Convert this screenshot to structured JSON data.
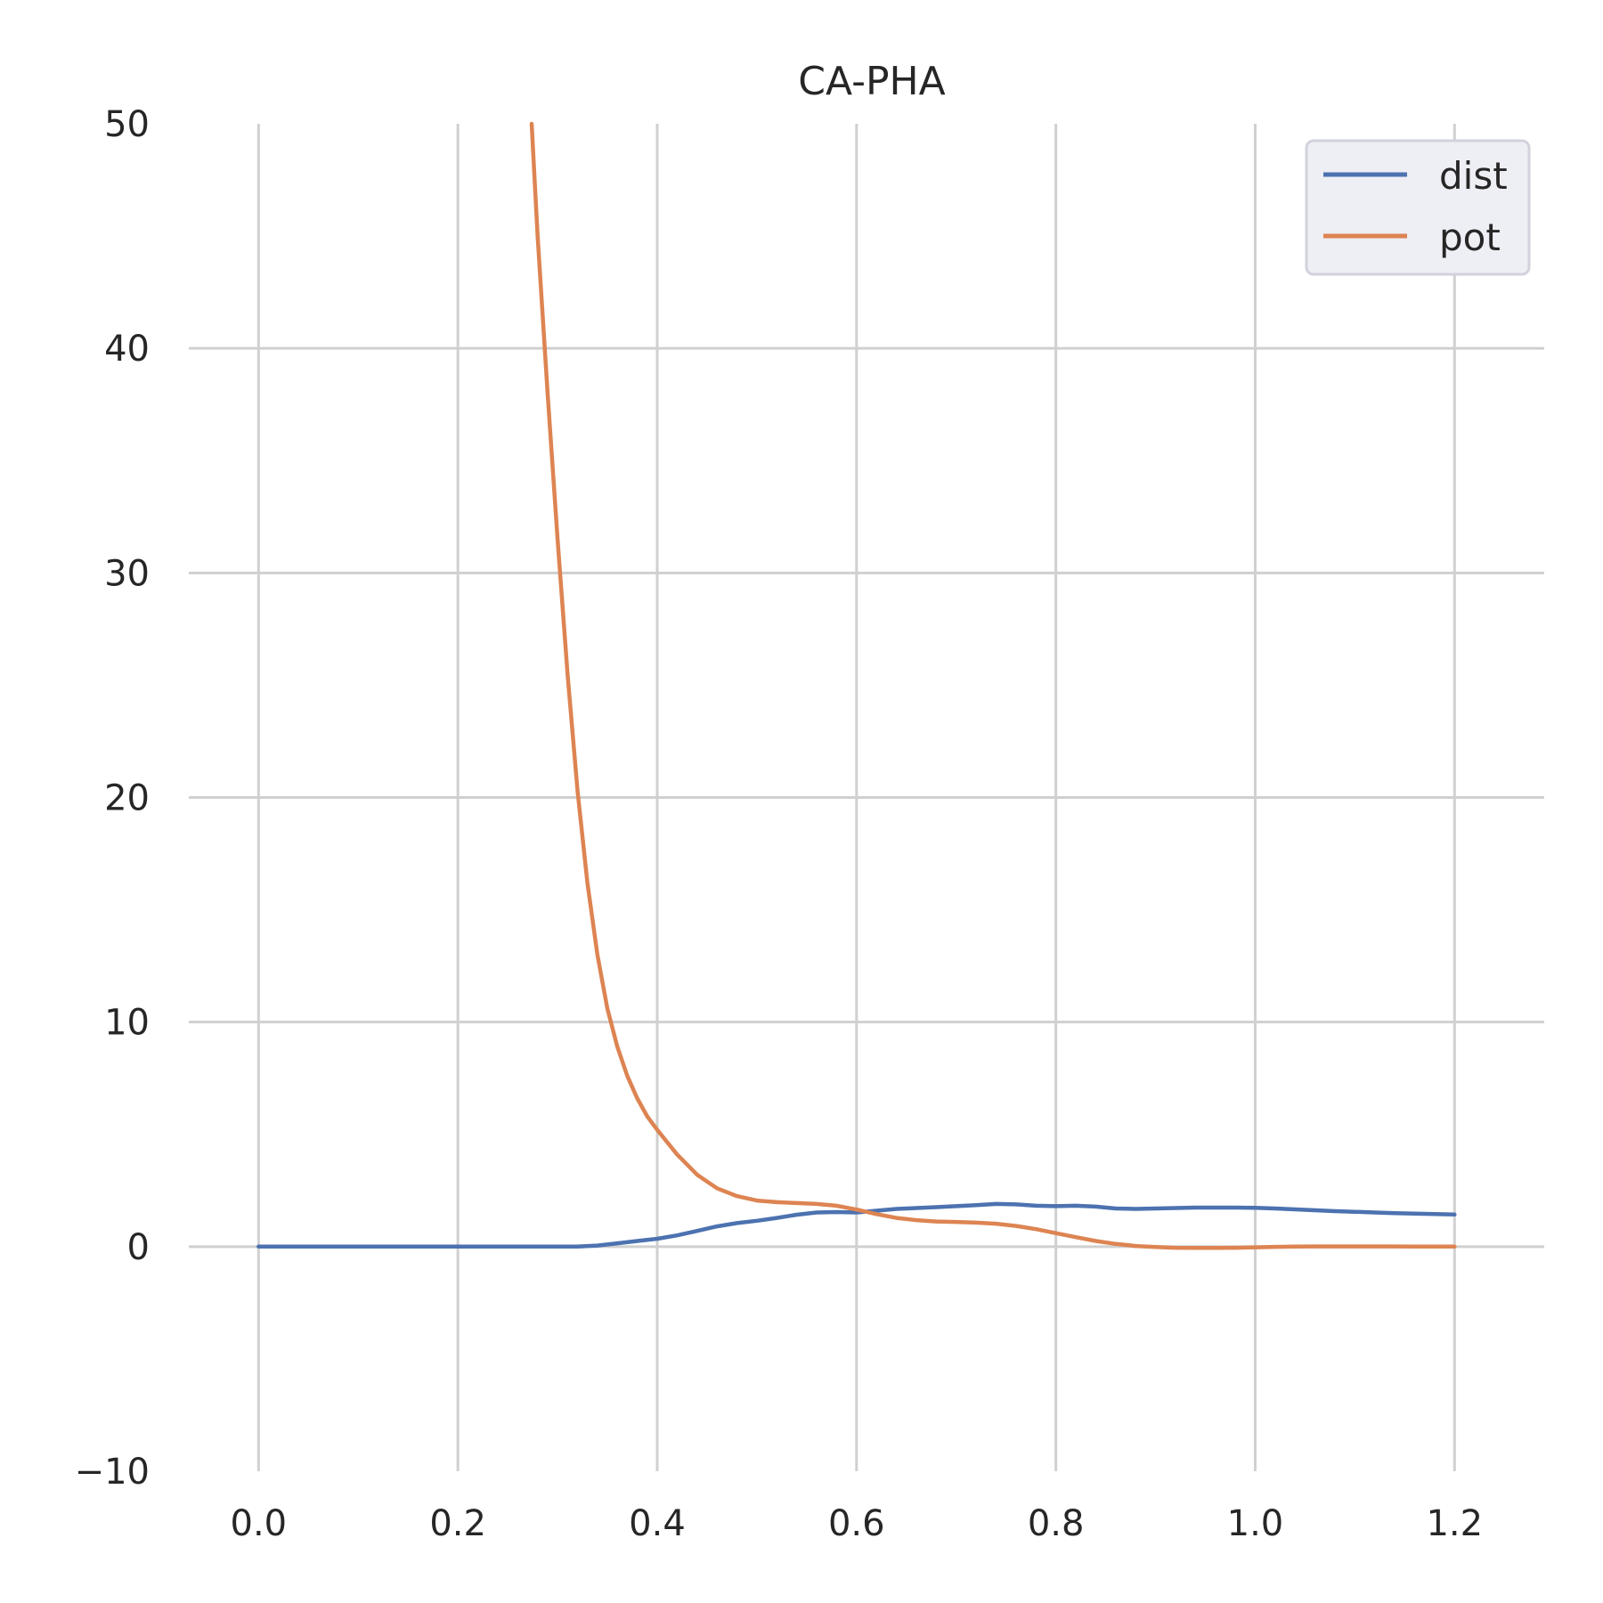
{
  "chart_data": {
    "type": "line",
    "title": "CA-PHA",
    "xlabel": "",
    "ylabel": "",
    "xlim": [
      -0.07,
      1.29
    ],
    "ylim": [
      -10,
      50
    ],
    "xticks": [
      0.0,
      0.2,
      0.4,
      0.6,
      0.8,
      1.0,
      1.2
    ],
    "xtick_labels": [
      "0.0",
      "0.2",
      "0.4",
      "0.6",
      "0.8",
      "1.0",
      "1.2"
    ],
    "yticks": [
      -10,
      0,
      10,
      20,
      30,
      40,
      50
    ],
    "ytick_labels": [
      "−10",
      "0",
      "10",
      "20",
      "30",
      "40",
      "50"
    ],
    "grid": true,
    "legend_position": "top-right",
    "series": [
      {
        "name": "dist",
        "color": "#4c72b0",
        "x": [
          0.0,
          0.05,
          0.1,
          0.15,
          0.2,
          0.25,
          0.3,
          0.32,
          0.34,
          0.36,
          0.38,
          0.4,
          0.42,
          0.44,
          0.46,
          0.48,
          0.5,
          0.52,
          0.54,
          0.56,
          0.58,
          0.6,
          0.62,
          0.64,
          0.66,
          0.68,
          0.7,
          0.72,
          0.74,
          0.76,
          0.78,
          0.8,
          0.82,
          0.84,
          0.86,
          0.88,
          0.9,
          0.92,
          0.94,
          0.96,
          0.98,
          1.0,
          1.02,
          1.04,
          1.06,
          1.08,
          1.1,
          1.12,
          1.14,
          1.16,
          1.18,
          1.2
        ],
        "y": [
          0.0,
          0.0,
          0.0,
          0.0,
          0.0,
          0.0,
          0.0,
          0.0,
          0.05,
          0.15,
          0.25,
          0.35,
          0.5,
          0.7,
          0.9,
          1.05,
          1.15,
          1.28,
          1.42,
          1.52,
          1.54,
          1.52,
          1.6,
          1.68,
          1.72,
          1.76,
          1.8,
          1.85,
          1.9,
          1.88,
          1.82,
          1.8,
          1.82,
          1.78,
          1.7,
          1.68,
          1.7,
          1.72,
          1.74,
          1.74,
          1.74,
          1.73,
          1.7,
          1.66,
          1.62,
          1.58,
          1.55,
          1.52,
          1.49,
          1.47,
          1.45,
          1.43
        ]
      },
      {
        "name": "pot",
        "color": "#dd8452",
        "x": [
          0.274,
          0.28,
          0.29,
          0.3,
          0.31,
          0.32,
          0.33,
          0.34,
          0.35,
          0.36,
          0.37,
          0.38,
          0.39,
          0.4,
          0.42,
          0.44,
          0.46,
          0.48,
          0.5,
          0.52,
          0.54,
          0.56,
          0.58,
          0.6,
          0.62,
          0.64,
          0.66,
          0.68,
          0.7,
          0.72,
          0.74,
          0.76,
          0.78,
          0.8,
          0.82,
          0.84,
          0.86,
          0.88,
          0.9,
          0.92,
          0.94,
          0.96,
          0.98,
          1.0,
          1.02,
          1.04,
          1.06,
          1.08,
          1.1,
          1.12,
          1.14,
          1.16,
          1.18,
          1.2
        ],
        "y": [
          50.0,
          45.0,
          38.0,
          31.5,
          25.5,
          20.3,
          16.2,
          13.0,
          10.6,
          8.9,
          7.6,
          6.6,
          5.8,
          5.2,
          4.1,
          3.2,
          2.6,
          2.25,
          2.05,
          1.98,
          1.94,
          1.9,
          1.82,
          1.65,
          1.45,
          1.28,
          1.18,
          1.12,
          1.1,
          1.07,
          1.02,
          0.92,
          0.78,
          0.6,
          0.42,
          0.25,
          0.12,
          0.03,
          -0.02,
          -0.05,
          -0.06,
          -0.06,
          -0.05,
          -0.03,
          -0.01,
          0.0,
          0.01,
          0.01,
          0.01,
          0.01,
          0.01,
          0.0,
          0.0,
          0.0
        ]
      }
    ]
  }
}
